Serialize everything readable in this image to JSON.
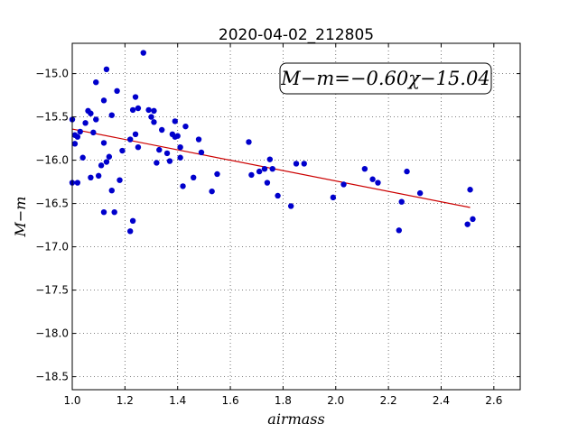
{
  "chart_data": {
    "type": "scatter",
    "title": "2020-04-02_212805",
    "xlabel": "airmass",
    "ylabel": "M−m",
    "xlim": [
      1.0,
      2.7
    ],
    "ylim": [
      -18.65,
      -14.65
    ],
    "xticks": [
      1.0,
      1.2,
      1.4,
      1.6,
      1.8,
      2.0,
      2.2,
      2.4,
      2.6
    ],
    "yticks": [
      -15.0,
      -15.5,
      -16.0,
      -16.5,
      -17.0,
      -17.5,
      -18.0,
      -18.5
    ],
    "xtick_labels": [
      "1.0",
      "1.2",
      "1.4",
      "1.6",
      "1.8",
      "2.0",
      "2.2",
      "2.4",
      "2.6"
    ],
    "ytick_labels": [
      "−15.0",
      "−15.5",
      "−16.0",
      "−16.5",
      "−17.0",
      "−17.5",
      "−18.0",
      "−18.5"
    ],
    "grid": true,
    "annotation": "M−m=−0.60χ−15.04",
    "fit": {
      "slope": -0.6,
      "intercept": -15.04,
      "x_range": [
        1.0,
        2.51
      ],
      "color": "#cc0000"
    },
    "point_color": "#0000cc",
    "points": [
      [
        1.0,
        -15.53
      ],
      [
        1.0,
        -16.26
      ],
      [
        1.01,
        -15.81
      ],
      [
        1.01,
        -15.71
      ],
      [
        1.02,
        -15.73
      ],
      [
        1.02,
        -16.26
      ],
      [
        1.03,
        -15.67
      ],
      [
        1.04,
        -15.97
      ],
      [
        1.05,
        -15.57
      ],
      [
        1.06,
        -15.43
      ],
      [
        1.07,
        -15.46
      ],
      [
        1.07,
        -16.2
      ],
      [
        1.08,
        -15.68
      ],
      [
        1.09,
        -15.1
      ],
      [
        1.09,
        -15.53
      ],
      [
        1.1,
        -16.18
      ],
      [
        1.11,
        -16.06
      ],
      [
        1.12,
        -15.31
      ],
      [
        1.12,
        -15.8
      ],
      [
        1.12,
        -16.6
      ],
      [
        1.13,
        -14.95
      ],
      [
        1.13,
        -16.02
      ],
      [
        1.14,
        -15.96
      ],
      [
        1.15,
        -15.48
      ],
      [
        1.15,
        -16.35
      ],
      [
        1.16,
        -16.6
      ],
      [
        1.17,
        -15.2
      ],
      [
        1.18,
        -16.23
      ],
      [
        1.19,
        -15.89
      ],
      [
        1.22,
        -15.76
      ],
      [
        1.22,
        -16.82
      ],
      [
        1.23,
        -15.42
      ],
      [
        1.23,
        -16.7
      ],
      [
        1.24,
        -15.27
      ],
      [
        1.24,
        -15.7
      ],
      [
        1.25,
        -15.85
      ],
      [
        1.25,
        -15.4
      ],
      [
        1.27,
        -14.76
      ],
      [
        1.29,
        -15.42
      ],
      [
        1.3,
        -15.5
      ],
      [
        1.31,
        -15.43
      ],
      [
        1.31,
        -15.56
      ],
      [
        1.32,
        -16.03
      ],
      [
        1.33,
        -15.88
      ],
      [
        1.34,
        -15.65
      ],
      [
        1.36,
        -15.92
      ],
      [
        1.37,
        -16.01
      ],
      [
        1.38,
        -15.7
      ],
      [
        1.39,
        -15.55
      ],
      [
        1.39,
        -15.73
      ],
      [
        1.4,
        -15.72
      ],
      [
        1.41,
        -15.97
      ],
      [
        1.41,
        -15.85
      ],
      [
        1.42,
        -16.3
      ],
      [
        1.43,
        -15.61
      ],
      [
        1.46,
        -16.2
      ],
      [
        1.48,
        -15.76
      ],
      [
        1.49,
        -15.91
      ],
      [
        1.53,
        -16.36
      ],
      [
        1.55,
        -16.16
      ],
      [
        1.67,
        -15.79
      ],
      [
        1.68,
        -16.17
      ],
      [
        1.71,
        -16.13
      ],
      [
        1.73,
        -16.1
      ],
      [
        1.74,
        -16.26
      ],
      [
        1.75,
        -15.99
      ],
      [
        1.76,
        -16.1
      ],
      [
        1.78,
        -16.41
      ],
      [
        1.83,
        -16.53
      ],
      [
        1.85,
        -16.04
      ],
      [
        1.88,
        -16.04
      ],
      [
        1.99,
        -16.43
      ],
      [
        2.03,
        -16.28
      ],
      [
        2.11,
        -16.1
      ],
      [
        2.14,
        -16.22
      ],
      [
        2.16,
        -16.26
      ],
      [
        2.24,
        -16.81
      ],
      [
        2.25,
        -16.48
      ],
      [
        2.27,
        -16.13
      ],
      [
        2.32,
        -16.38
      ],
      [
        2.5,
        -16.74
      ],
      [
        2.51,
        -16.34
      ],
      [
        2.52,
        -16.68
      ]
    ]
  }
}
